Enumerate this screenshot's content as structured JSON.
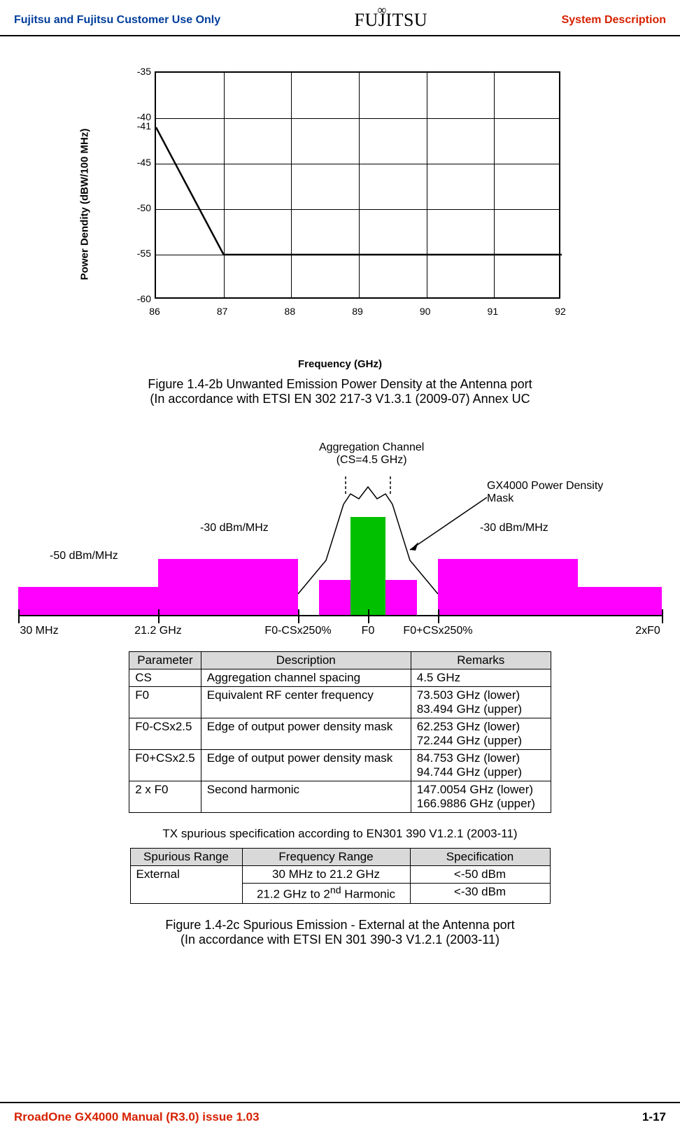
{
  "header": {
    "left": "Fujitsu and Fujitsu Customer Use Only",
    "logo_text": "FUJITSU",
    "right": "System Description"
  },
  "chart1": {
    "type": "line",
    "ylabel": "Power Dendity (dBW/100 MHz)",
    "xlabel": "Frequency (GHz)",
    "y_ticks": [
      -35,
      -40,
      -41,
      -45,
      -50,
      -55,
      -60
    ],
    "y_grid": [
      -40,
      -45,
      -50,
      -55
    ],
    "x_ticks": [
      86,
      87,
      88,
      89,
      90,
      91,
      92
    ],
    "ylim": [
      -60,
      -35
    ],
    "xlim": [
      86,
      92
    ],
    "points": [
      [
        86,
        -41
      ],
      [
        87,
        -55
      ],
      [
        92,
        -55
      ]
    ],
    "line_color": "#000000",
    "line_width": 2.5
  },
  "caption1a": "Figure 1.4-2b Unwanted Emission Power Density at the Antenna port",
  "caption1b": "(In accordance with ETSI EN 302 217-3 V1.3.1 (2009-07) Annex UC",
  "diagram": {
    "agg_label_1": "Aggregation Channel",
    "agg_label_2": "(CS=4.5 GHz)",
    "mask_label": "GX4000 Power Density\nMask",
    "neg30": "-30 dBm/MHz",
    "neg50": "-50 dBm/MHz",
    "x_labels": [
      "30 MHz",
      "21.2 GHz",
      "F0-CSx250%",
      "F0",
      "F0+CSx250%",
      "2xF0"
    ],
    "colors": {
      "pink": "#ff00ff",
      "green": "#00c000"
    }
  },
  "table1": {
    "headers": [
      "Parameter",
      "Description",
      "Remarks"
    ],
    "rows": [
      [
        "CS",
        "Aggregation channel spacing",
        "4.5 GHz"
      ],
      [
        "F0",
        "Equivalent RF center frequency",
        "73.503 GHz (lower)\n83.494 GHz (upper)"
      ],
      [
        "F0-CSx2.5",
        "Edge of output power density mask",
        "62.253 GHz (lower)\n72.244 GHz (upper)"
      ],
      [
        "F0+CSx2.5",
        "Edge of output power density mask",
        "84.753 GHz (lower)\n94.744 GHz (upper)"
      ],
      [
        "2 x F0",
        "Second harmonic",
        "147.0054 GHz (lower)\n166.9886 GHz (upper)"
      ]
    ],
    "col_widths": [
      "100px",
      "300px",
      "200px"
    ]
  },
  "spurious_heading": "TX spurious specification according to EN301 390 V1.2.1 (2003-11)",
  "table2": {
    "headers": [
      "Spurious Range",
      "Frequency Range",
      "Specification"
    ],
    "rows": [
      [
        "External",
        "30 MHz to 21.2 GHz",
        "<-50 dBm"
      ],
      [
        "",
        "21.2 GHz to 2nd Harmonic",
        "<-30 dBm"
      ]
    ],
    "col_widths": [
      "160px",
      "240px",
      "200px"
    ]
  },
  "caption2a": "Figure 1.4-2c Spurious Emission - External at the Antenna port",
  "caption2b": "(In accordance with ETSI EN 301 390-3 V1.2.1 (2003-11)",
  "footer": {
    "left": "RroadOne GX4000 Manual (R3.0) issue 1.03",
    "right": "1-17"
  }
}
